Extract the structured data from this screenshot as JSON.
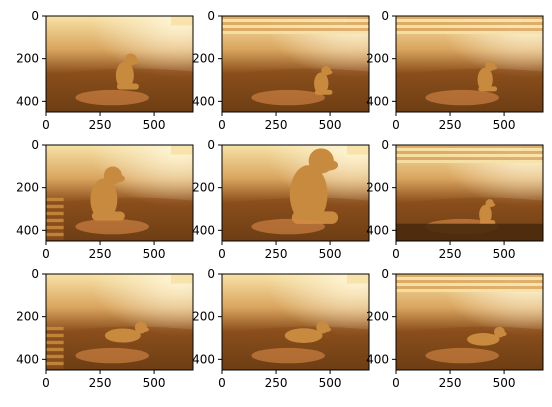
{
  "chart_data": [
    {
      "type": "image",
      "xlim": [
        0,
        680
      ],
      "ylim": [
        450,
        0
      ],
      "xticks": [
        0,
        250,
        500
      ],
      "yticks": [
        0,
        200,
        400
      ],
      "xtick_labels": [
        "0",
        "250",
        "500"
      ],
      "ytick_labels": [
        "0",
        "200",
        "400"
      ],
      "content": "sunlit golden retriever sitting on a hillside"
    },
    {
      "type": "image",
      "xlim": [
        0,
        680
      ],
      "ylim": [
        450,
        0
      ],
      "xticks": [
        0,
        250,
        500
      ],
      "yticks": [
        0,
        200,
        400
      ],
      "xtick_labels": [
        "0",
        "250",
        "500"
      ],
      "ytick_labels": [
        "0",
        "200",
        "400"
      ],
      "content": "dog photo shifted right/down with stretched edge bands"
    },
    {
      "type": "image",
      "xlim": [
        0,
        680
      ],
      "ylim": [
        450,
        0
      ],
      "xticks": [
        0,
        250,
        500
      ],
      "yticks": [
        0,
        200,
        400
      ],
      "xtick_labels": [
        "0",
        "250",
        "500"
      ],
      "ytick_labels": [
        "0",
        "200",
        "400"
      ],
      "content": "dog photo shifted with stretched top band"
    },
    {
      "type": "image",
      "xlim": [
        0,
        680
      ],
      "ylim": [
        450,
        0
      ],
      "xticks": [
        0,
        250,
        500
      ],
      "yticks": [
        0,
        200,
        400
      ],
      "xtick_labels": [
        "0",
        "250",
        "500"
      ],
      "ytick_labels": [
        "0",
        "200",
        "400"
      ],
      "content": "dog photo zoomed in"
    },
    {
      "type": "image",
      "xlim": [
        0,
        680
      ],
      "ylim": [
        450,
        0
      ],
      "xticks": [
        0,
        250,
        500
      ],
      "yticks": [
        0,
        200,
        400
      ],
      "xtick_labels": [
        "0",
        "250",
        "500"
      ],
      "ytick_labels": [
        "0",
        "200",
        "400"
      ],
      "content": "dog photo strongly zoomed in"
    },
    {
      "type": "image",
      "xlim": [
        0,
        680
      ],
      "ylim": [
        450,
        0
      ],
      "xticks": [
        0,
        250,
        500
      ],
      "yticks": [
        0,
        200,
        400
      ],
      "xtick_labels": [
        "0",
        "250",
        "500"
      ],
      "ytick_labels": [
        "0",
        "200",
        "400"
      ],
      "content": "dog photo zoomed out with stretched left and bottom bands"
    },
    {
      "type": "image",
      "xlim": [
        0,
        680
      ],
      "ylim": [
        450,
        0
      ],
      "xticks": [
        0,
        250,
        500
      ],
      "yticks": [
        0,
        200,
        400
      ],
      "xtick_labels": [
        "0",
        "250",
        "500"
      ],
      "ytick_labels": [
        "0",
        "200",
        "400"
      ],
      "content": "dog lying down on hillside"
    },
    {
      "type": "image",
      "xlim": [
        0,
        680
      ],
      "ylim": [
        450,
        0
      ],
      "xticks": [
        0,
        250,
        500
      ],
      "yticks": [
        0,
        200,
        400
      ],
      "xtick_labels": [
        "0",
        "250",
        "500"
      ],
      "ytick_labels": [
        "0",
        "200",
        "400"
      ],
      "content": "dog lying down, slightly brighter"
    },
    {
      "type": "image",
      "xlim": [
        0,
        680
      ],
      "ylim": [
        450,
        0
      ],
      "xticks": [
        0,
        250,
        500
      ],
      "yticks": [
        0,
        200,
        400
      ],
      "xtick_labels": [
        "0",
        "250",
        "500"
      ],
      "ytick_labels": [
        "0",
        "200",
        "400"
      ],
      "content": "dog lying down, shifted with stretched top band"
    }
  ],
  "colors": {
    "sun": "#f7e2a6",
    "sky": "#d9a45e",
    "grass": "#8a4e1c",
    "dark": "#4a2a0c",
    "dog": "#c88a3e"
  }
}
